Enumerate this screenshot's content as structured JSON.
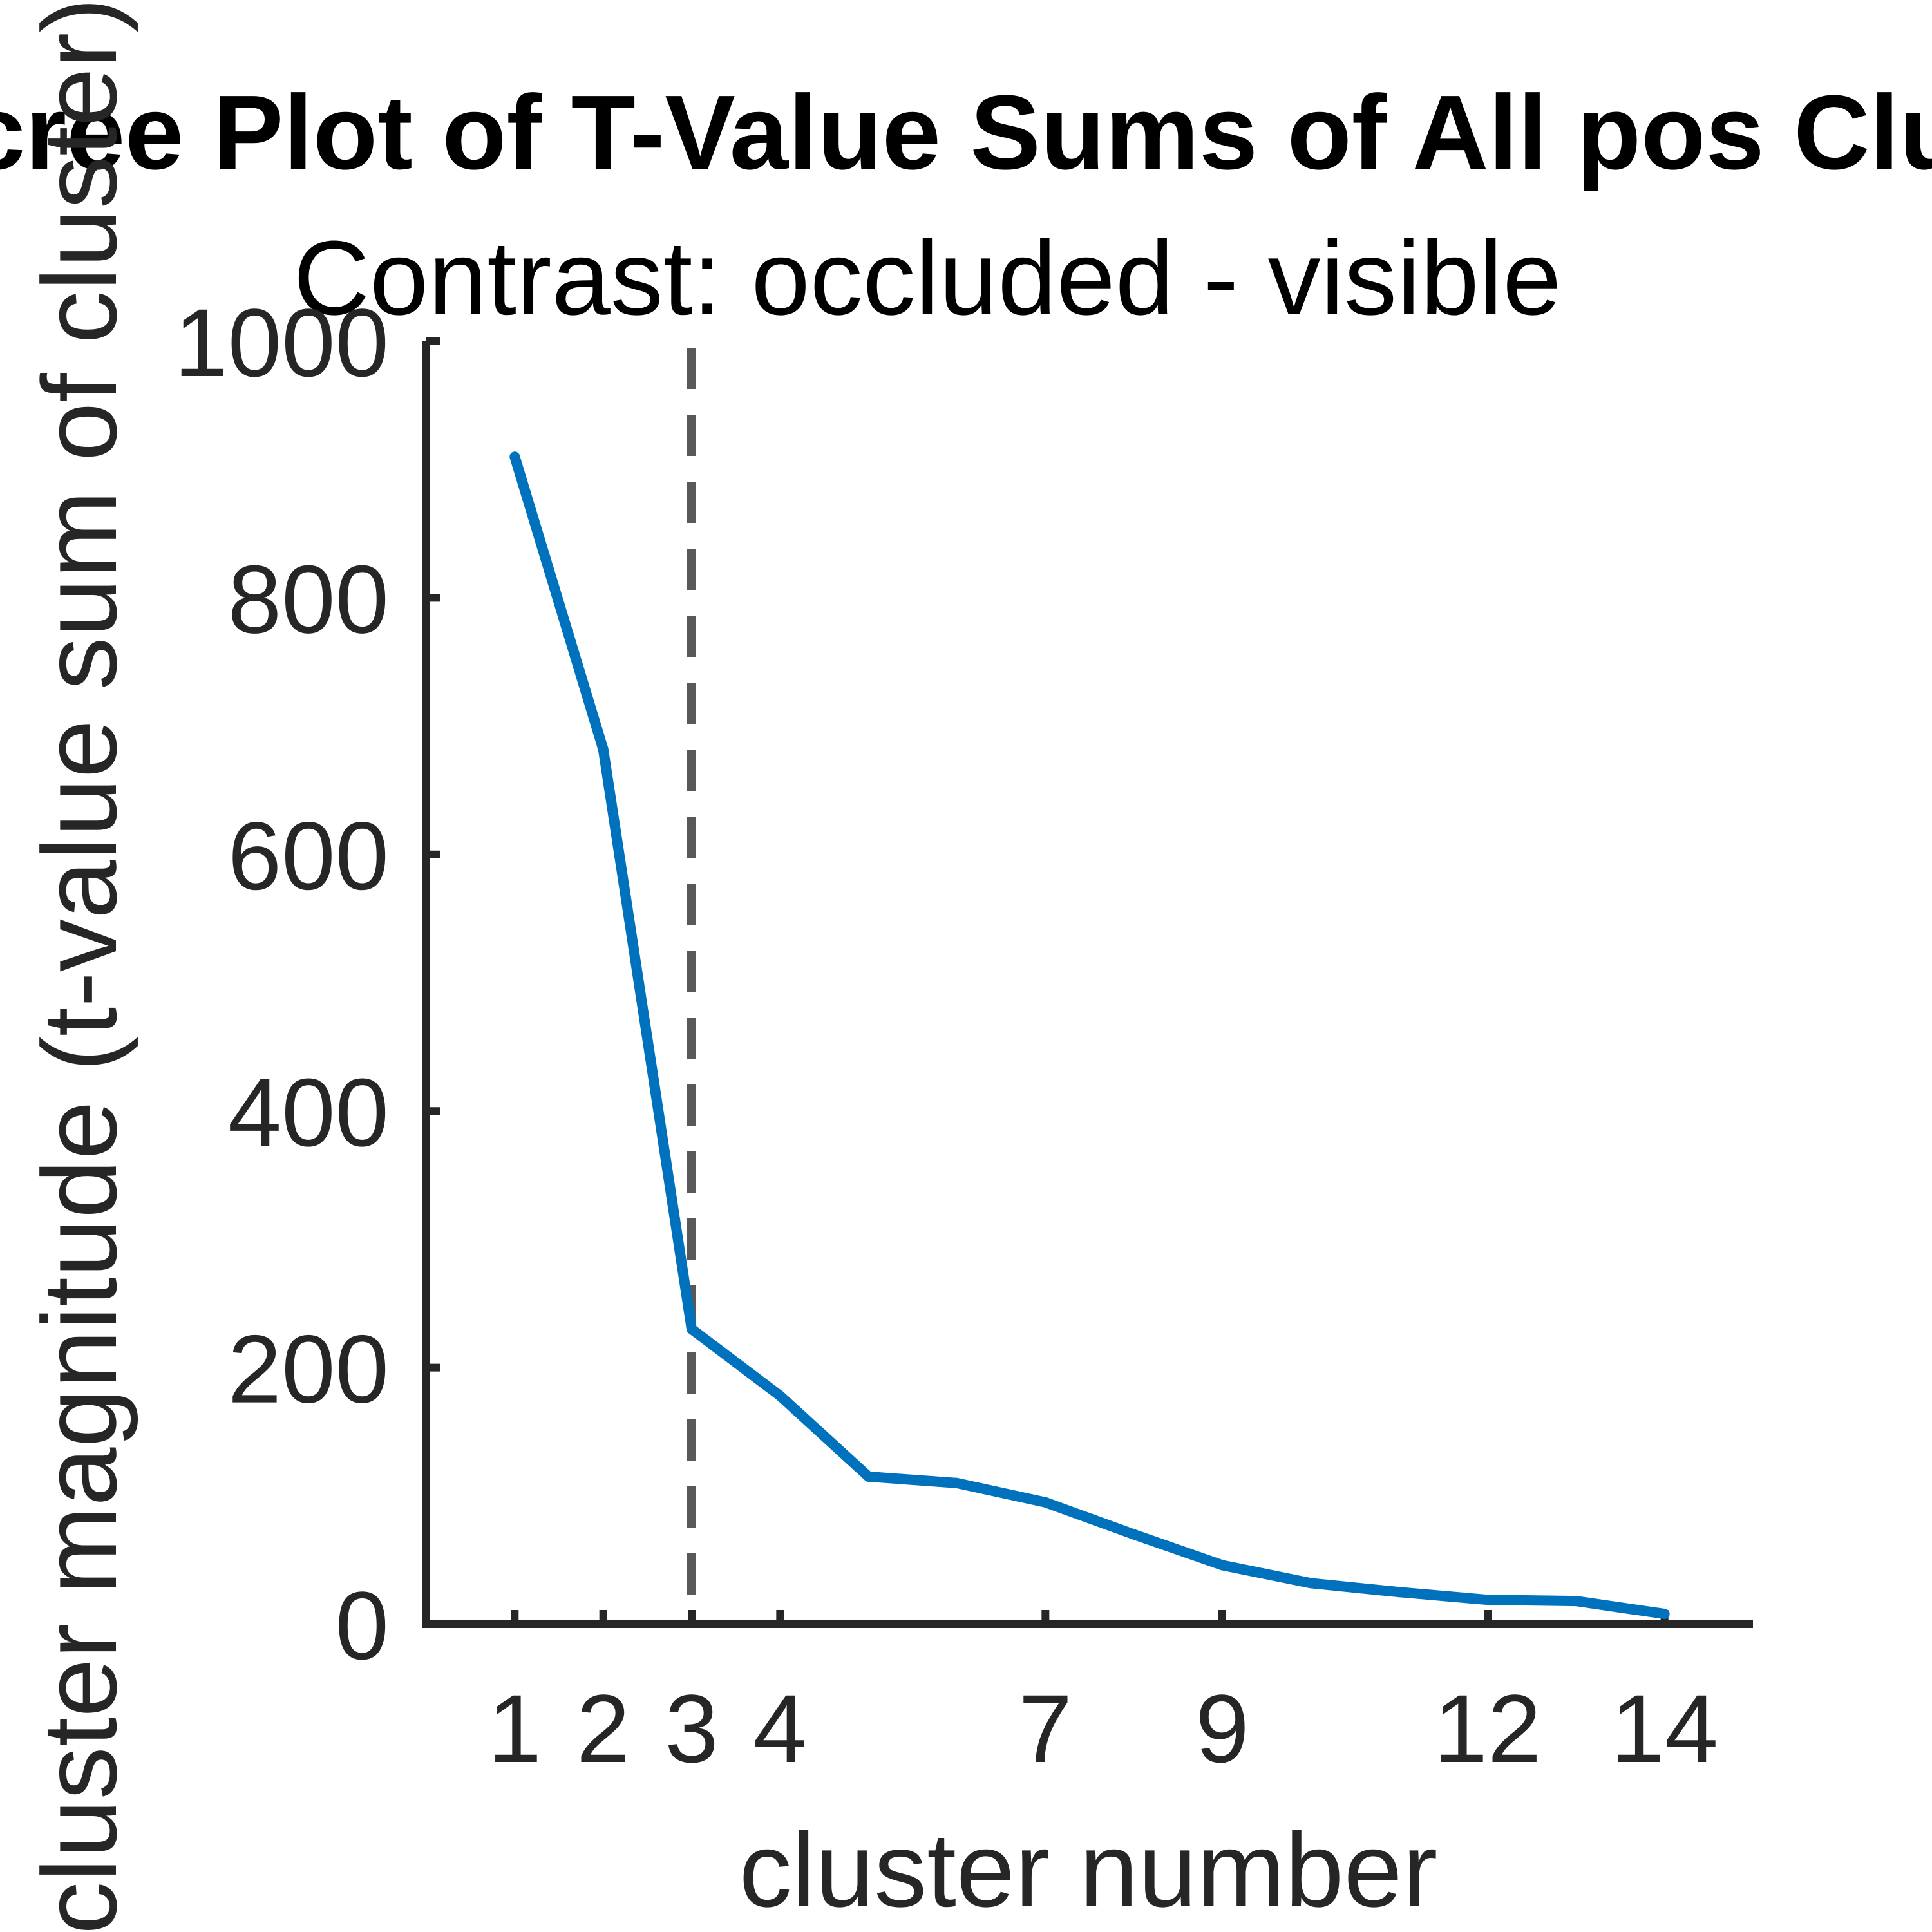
{
  "chart_data": {
    "type": "line",
    "title": "Scree Plot of T-Value Sums of All pos Clusters",
    "subtitle": "Contrast: occluded - visible",
    "xlabel": "cluster number",
    "ylabel": "cluster magnitude (t-value sum of cluster)",
    "xlim": [
      0,
      15
    ],
    "ylim": [
      0,
      1000
    ],
    "xticks": [
      1,
      2,
      3,
      4,
      7,
      9,
      12,
      14
    ],
    "yticks": [
      0,
      200,
      400,
      600,
      800,
      1000
    ],
    "grid": false,
    "series": [
      {
        "x": [
          1,
          2,
          3,
          4,
          5,
          6,
          7,
          8,
          9,
          10,
          11,
          12,
          13,
          14
        ],
        "values": [
          910,
          682,
          230,
          178,
          115,
          110,
          95,
          70,
          46,
          32,
          25,
          19,
          18,
          8
        ]
      }
    ],
    "vertical_marker": {
      "x": 3,
      "style": "dashed"
    },
    "colors": {
      "line": "#0072BD",
      "axes": "#262626",
      "marker": "#595959"
    }
  }
}
